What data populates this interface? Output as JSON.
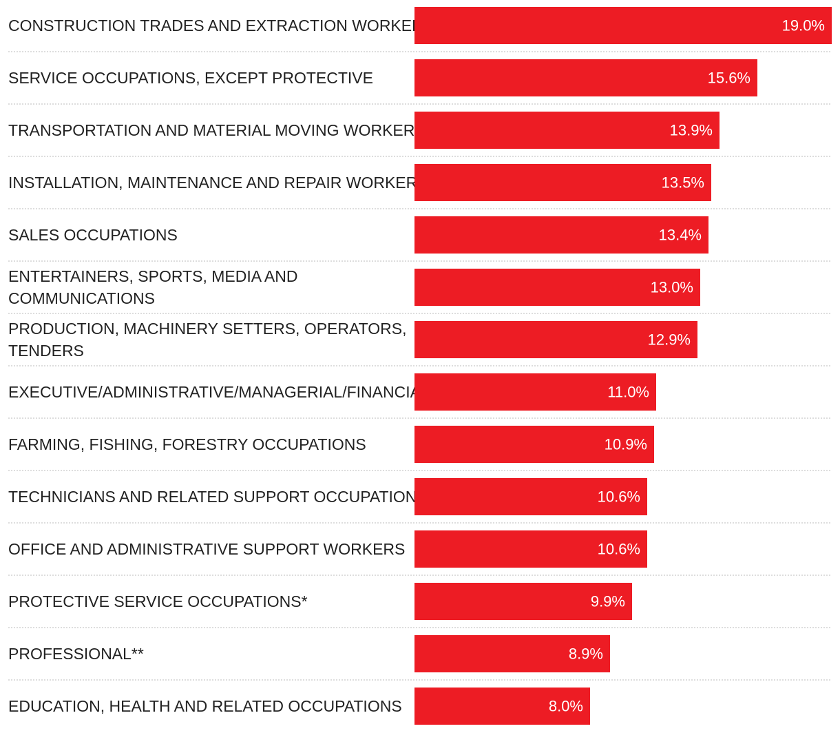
{
  "colors": {
    "bar": "#ED1C24",
    "divider": "#BBBBBB",
    "text": "#222222",
    "bar_text": "#FFFFFF"
  },
  "chart_data": {
    "type": "bar",
    "orientation": "horizontal",
    "title": "",
    "xlabel": "",
    "ylabel": "",
    "xlim": [
      0,
      19
    ],
    "grid": false,
    "value_suffix": "%",
    "categories": [
      [
        "CONSTRUCTION TRADES AND EXTRACTION WORKERS"
      ],
      [
        "SERVICE OCCUPATIONS, EXCEPT PROTECTIVE"
      ],
      [
        "TRANSPORTATION AND MATERIAL MOVING WORKERS"
      ],
      [
        "INSTALLATION, MAINTENANCE AND REPAIR WORKERS"
      ],
      [
        "SALES OCCUPATIONS"
      ],
      [
        "ENTERTAINERS, SPORTS, MEDIA AND",
        "COMMUNICATIONS"
      ],
      [
        "PRODUCTION, MACHINERY SETTERS, OPERATORS,",
        "TENDERS"
      ],
      [
        "EXECUTIVE/ADMINISTRATIVE/MANAGERIAL/FINANCIAL"
      ],
      [
        "FARMING, FISHING, FORESTRY OCCUPATIONS"
      ],
      [
        "TECHNICIANS AND RELATED SUPPORT OCCUPATIONS"
      ],
      [
        "OFFICE AND ADMINISTRATIVE SUPPORT WORKERS"
      ],
      [
        "PROTECTIVE SERVICE OCCUPATIONS*"
      ],
      [
        "PROFESSIONAL**"
      ],
      [
        "EDUCATION, HEALTH AND RELATED OCCUPATIONS"
      ]
    ],
    "values": [
      19.0,
      15.6,
      13.9,
      13.5,
      13.4,
      13.0,
      12.9,
      11.0,
      10.9,
      10.6,
      10.6,
      9.9,
      8.9,
      8.0
    ],
    "value_labels": [
      "19.0%",
      "15.6%",
      "13.9%",
      "13.5%",
      "13.4%",
      "13.0%",
      "12.9%",
      "11.0%",
      "10.9%",
      "10.6%",
      "10.6%",
      "9.9%",
      "8.9%",
      "8.0%"
    ]
  }
}
